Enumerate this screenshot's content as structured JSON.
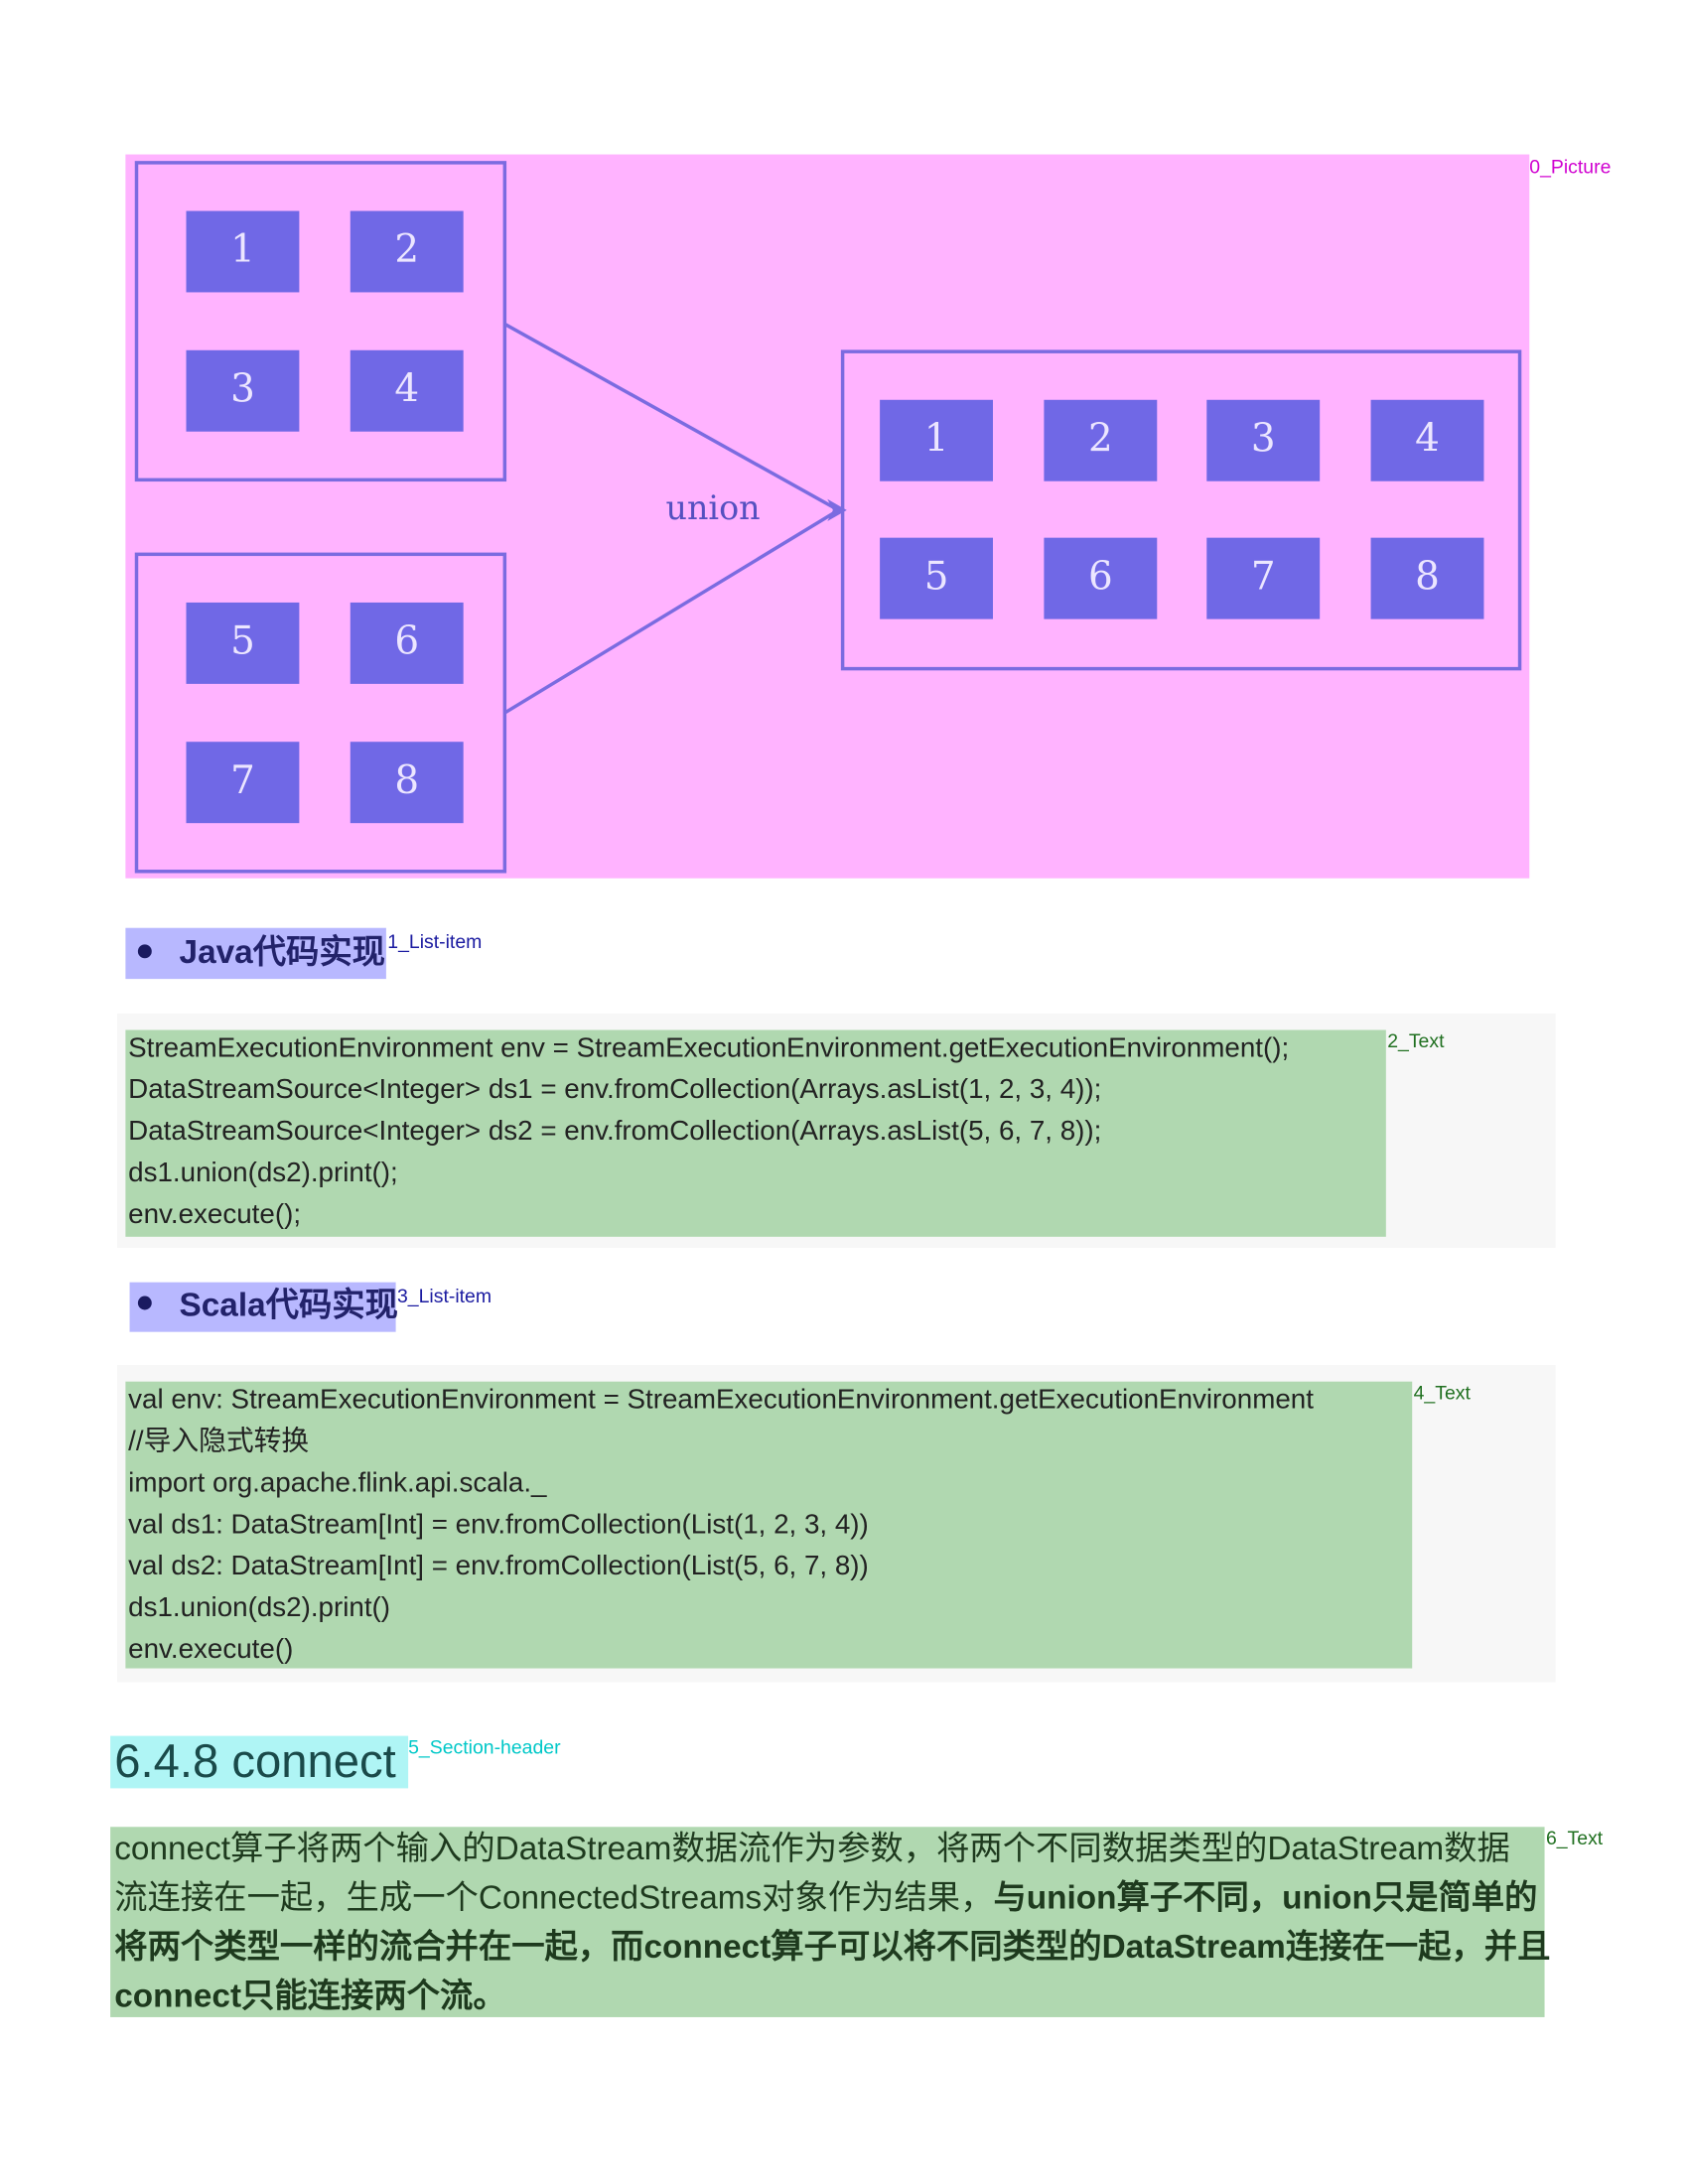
{
  "annotations": [
    {
      "label": "0_Picture"
    },
    {
      "label": "1_List-item"
    },
    {
      "label": "2_Text"
    },
    {
      "label": "3_List-item"
    },
    {
      "label": "4_Text"
    },
    {
      "label": "5_Section-header"
    },
    {
      "label": "6_Text"
    }
  ],
  "picture": {
    "left_top": [
      "1",
      "2",
      "3",
      "4"
    ],
    "left_bottom": [
      "5",
      "6",
      "7",
      "8"
    ],
    "arrow_label": "union",
    "right": [
      "1",
      "2",
      "3",
      "4",
      "5",
      "6",
      "7",
      "8"
    ]
  },
  "java_item": "Java代码实现",
  "java_code": [
    "StreamExecutionEnvironment env = StreamExecutionEnvironment.getExecutionEnvironment();",
    "DataStreamSource<Integer> ds1 = env.fromCollection(Arrays.asList(1, 2, 3, 4));",
    "DataStreamSource<Integer> ds2 = env.fromCollection(Arrays.asList(5, 6, 7, 8));",
    "ds1.union(ds2).print();",
    "env.execute();"
  ],
  "scala_item": "Scala代码实现",
  "scala_code": [
    "val env: StreamExecutionEnvironment = StreamExecutionEnvironment.getExecutionEnvironment",
    "//导入隐式转换",
    "import org.apache.flink.api.scala._",
    "val ds1: DataStream[Int] = env.fromCollection(List(1, 2, 3, 4))",
    "val ds2: DataStream[Int] = env.fromCollection(List(5, 6, 7, 8))",
    "ds1.union(ds2).print()",
    "env.execute()"
  ],
  "section_header": "6.4.8 connect",
  "paragraph": [
    [
      {
        "text": "connect算子将两个输入的DataStream数据流作为参数，将两个不同数据类型的DataStream数据",
        "bold": false
      }
    ],
    [
      {
        "text": "流连接在一起，生成一个ConnectedStreams对象作为结果，",
        "bold": false
      },
      {
        "text": "与union算子不同，union只是简单的",
        "bold": true
      }
    ],
    [
      {
        "text": "将两个类型一样的流合并在一起，而connect算子可以将不同类型的DataStream连接在一起，并且",
        "bold": true
      }
    ],
    [
      {
        "text": "connect只能连接两个流。",
        "bold": true
      }
    ]
  ]
}
